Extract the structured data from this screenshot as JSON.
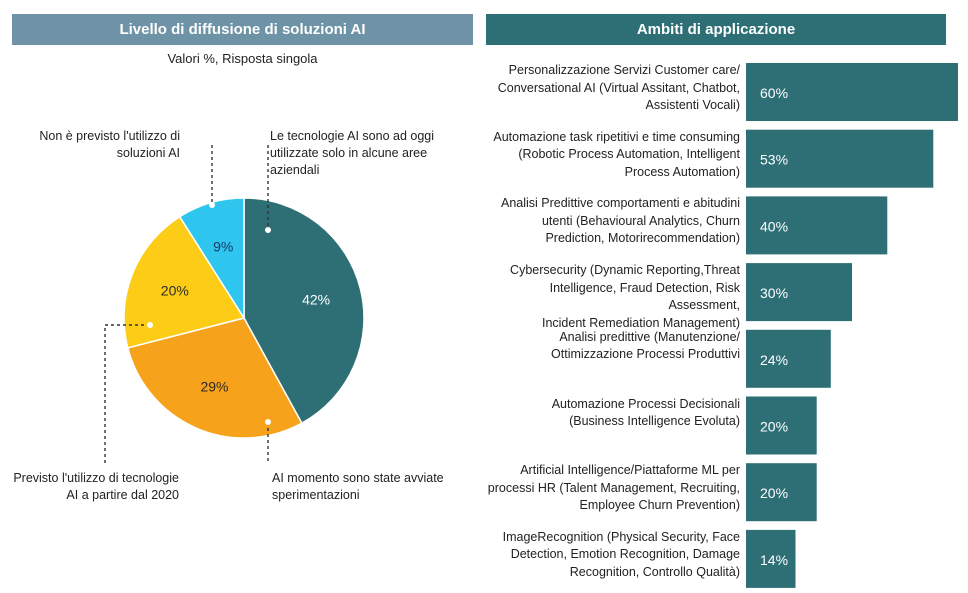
{
  "left_panel": {
    "title": "Livello di diffusione di soluzioni AI",
    "subtitle": "Valori %, Risposta singola"
  },
  "right_panel": {
    "title": "Ambiti di applicazione"
  },
  "colors": {
    "teal": "#2e6f76",
    "orange": "#f7a21b",
    "yellow": "#fccc16",
    "cyan": "#2ec6ee",
    "header_left": "#6e93a6"
  },
  "chart_data": [
    {
      "type": "pie",
      "title": "Livello di diffusione di soluzioni AI",
      "subtitle": "Valori %, Risposta singola",
      "slices": [
        {
          "label": "Le tecnologie AI sono ad oggi utilizzate solo in alcune aree aziendali",
          "value": 42,
          "display": "42%",
          "color": "#2e6f76"
        },
        {
          "label": "AI momento sono state avviate sperimentazioni",
          "value": 29,
          "display": "29%",
          "color": "#f7a21b"
        },
        {
          "label": "Previsto l'utilizzo di tecnologie AI a partire dal 2020",
          "value": 20,
          "display": "20%",
          "color": "#fccc16"
        },
        {
          "label": "Non è previsto l'utilizzo di soluzioni AI",
          "value": 9,
          "display": "9%",
          "color": "#2ec6ee"
        }
      ],
      "annotations": {
        "top_right": [
          "Le tecnologie AI sono ad oggi",
          "utilizzate solo in alcune aree",
          "aziendali"
        ],
        "bottom_right": [
          "AI momento sono state avviate",
          "sperimentazioni"
        ],
        "bottom_left": [
          "Previsto l'utilizzo di tecnologie",
          "AI a partire dal 2020"
        ],
        "top_left": [
          "Non è previsto l'utilizzo di",
          "soluzioni AI"
        ]
      }
    },
    {
      "type": "bar",
      "orientation": "horizontal",
      "title": "Ambiti di applicazione",
      "xlim": [
        0,
        60
      ],
      "categories": [
        [
          "Personalizzazione Servizi Customer care/",
          "Conversational AI (Virtual Assitant, Chatbot,",
          "Assistenti Vocali)"
        ],
        [
          "Automazione task ripetitivi e time consuming",
          "(Robotic Process Automation, Intelligent",
          "Process Automation)"
        ],
        [
          "Analisi Predittive comportamenti e abitudini",
          "utenti (Behavioural Analytics, Churn",
          "Prediction, Motorirecommendation)"
        ],
        [
          "Cybersecurity (Dynamic Reporting,Threat",
          "Intelligence, Fraud Detection, Risk Assessment,",
          "Incident Remediation Management)"
        ],
        [
          "Analisi predittive (Manutenzione/",
          "Ottimizzazione Processi Produttivi"
        ],
        [
          "Automazione Processi Decisionali",
          "(Business Intelligence Evoluta)"
        ],
        [
          "Artificial Intelligence/Piattaforme ML per",
          "processi HR (Talent Management, Recruiting,",
          "Employee Churn Prevention)"
        ],
        [
          "ImageRecognition (Physical Security, Face",
          "Detection, Emotion Recognition, Damage",
          "Recognition, Controllo Qualità)"
        ]
      ],
      "values": [
        60,
        53,
        40,
        30,
        24,
        20,
        20,
        14
      ],
      "value_labels": [
        "60%",
        "53%",
        "40%",
        "30%",
        "24%",
        "20%",
        "20%",
        "14%"
      ],
      "color": "#2e6f76"
    }
  ]
}
